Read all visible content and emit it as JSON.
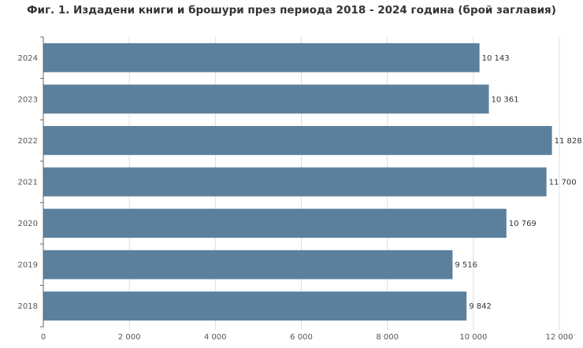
{
  "chart_data": {
    "type": "bar",
    "orientation": "horizontal",
    "title": "Фиг. 1. Издадени книги и брошури през периода 2018 - 2024 година (брой заглавия)",
    "categories": [
      "2024",
      "2023",
      "2022",
      "2021",
      "2020",
      "2019",
      "2018"
    ],
    "values": [
      10143,
      10361,
      11828,
      11700,
      10769,
      9516,
      9842
    ],
    "data_labels": [
      "10 143",
      "10 361",
      "11 828",
      "11 700",
      "10 769",
      "9 516",
      "9 842"
    ],
    "xlim": [
      0,
      12000
    ],
    "x_ticks": [
      0,
      2000,
      4000,
      6000,
      8000,
      10000,
      12000
    ],
    "x_tick_labels": [
      "0",
      "2 000",
      "4 000",
      "6 000",
      "8 000",
      "10 000",
      "12 000"
    ],
    "xlabel": "",
    "ylabel": "",
    "grid": true,
    "bar_color": "#5b809d",
    "grid_color": "#dddddd"
  }
}
